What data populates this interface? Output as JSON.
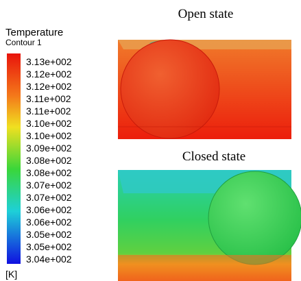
{
  "legend": {
    "title": "Temperature",
    "subtitle": "Contour 1",
    "labels": [
      "3.13e+002",
      "3.12e+002",
      "3.12e+002",
      "3.11e+002",
      "3.11e+002",
      "3.10e+002",
      "3.10e+002",
      "3.09e+002",
      "3.08e+002",
      "3.08e+002",
      "3.07e+002",
      "3.07e+002",
      "3.06e+002",
      "3.06e+002",
      "3.05e+002",
      "3.05e+002",
      "3.04e+002"
    ],
    "unit": "[K]"
  },
  "panels": [
    {
      "title": "Open state"
    },
    {
      "title": "Closed state"
    }
  ]
}
